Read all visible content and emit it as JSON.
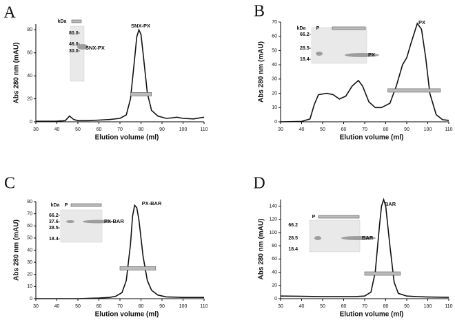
{
  "chart_data": [
    {
      "type": "line",
      "panel_label": "A",
      "xlabel": "Elution volume (ml)",
      "ylabel": "Abs 280 nm (mAU)",
      "xlim": [
        30,
        110
      ],
      "xticks": [
        30,
        40,
        50,
        60,
        70,
        80,
        90,
        100,
        110
      ],
      "ylim": [
        0,
        85
      ],
      "yticks": [
        0,
        20,
        40,
        60,
        80
      ],
      "color": "#111111",
      "annotation": "SNX-PX",
      "x": [
        30,
        35,
        40,
        44,
        46,
        48,
        50,
        55,
        60,
        65,
        70,
        73,
        75,
        77,
        78,
        79,
        80,
        81,
        83,
        85,
        88,
        92,
        95,
        97,
        100,
        105,
        110
      ],
      "values": [
        0.5,
        0.5,
        0.6,
        1,
        5,
        2,
        1,
        1,
        1.5,
        2,
        3,
        6,
        20,
        55,
        74,
        80,
        76,
        60,
        25,
        10,
        5,
        3,
        3.5,
        4,
        3,
        2.5,
        4
      ],
      "pool": {
        "x": [
          75,
          85
        ],
        "y": 24
      },
      "inset": {
        "header": "kDa",
        "markers": [
          "80.0-",
          "46.0-",
          "30.0-"
        ],
        "band_label": "SNX-PX"
      }
    },
    {
      "type": "line",
      "panel_label": "B",
      "xlabel": "Elution volume (ml)",
      "ylabel": "Abs 280 nm (mAU)",
      "xlim": [
        30,
        110
      ],
      "xticks": [
        30,
        40,
        50,
        60,
        70,
        80,
        90,
        100,
        110
      ],
      "ylim": [
        0,
        70
      ],
      "yticks": [
        0,
        10,
        20,
        30,
        40,
        50,
        60,
        70
      ],
      "color": "#111111",
      "annotation": "PX",
      "x": [
        30,
        40,
        44,
        46,
        48,
        52,
        55,
        58,
        61,
        64,
        67,
        69,
        72,
        75,
        78,
        82,
        85,
        88,
        90,
        92,
        95,
        97,
        99,
        101,
        104,
        107,
        110
      ],
      "values": [
        0,
        0.3,
        2,
        12,
        19,
        20,
        19,
        16,
        18,
        25,
        29,
        25,
        14,
        10,
        10,
        13,
        25,
        40,
        45,
        55,
        69,
        65,
        45,
        20,
        5,
        1.5,
        1
      ],
      "pool": {
        "x": [
          81,
          106
        ],
        "y": 22
      },
      "inset": {
        "header": "kDa",
        "lane": "P",
        "markers": [
          "66.2-",
          "28.5-",
          "18.4-"
        ],
        "band_label": "PX"
      }
    },
    {
      "type": "line",
      "panel_label": "C",
      "xlabel": "Elution volume (ml)",
      "ylabel": "Abs 280 nm (mAU)",
      "xlim": [
        30,
        110
      ],
      "xticks": [
        30,
        40,
        50,
        60,
        70,
        80,
        90,
        100,
        110
      ],
      "ylim": [
        0,
        80
      ],
      "yticks": [
        0,
        10,
        20,
        30,
        40,
        50,
        60,
        70,
        80
      ],
      "color": "#111111",
      "annotation": "PX-BAR",
      "x": [
        30,
        40,
        50,
        60,
        65,
        68,
        71,
        73,
        75,
        76,
        77,
        78,
        79,
        81,
        83,
        85,
        88,
        92,
        100,
        110
      ],
      "values": [
        0,
        0,
        0,
        0.5,
        1,
        2,
        5,
        15,
        45,
        68,
        77,
        75,
        65,
        35,
        15,
        7,
        3,
        1.5,
        1,
        1
      ],
      "pool": {
        "x": [
          70,
          87
        ],
        "y": 25
      },
      "inset": {
        "header": "kDa",
        "lane": "P",
        "markers": [
          "66.2-",
          "37.6-",
          "28.5-",
          "18.4-"
        ],
        "band_label": "PX-BAR"
      }
    },
    {
      "type": "line",
      "panel_label": "D",
      "xlabel": "Elution volume (ml)",
      "ylabel": "Abs 280 nm (mAU)",
      "xlim": [
        30,
        110
      ],
      "xticks": [
        30,
        40,
        50,
        60,
        70,
        80,
        90,
        100,
        110
      ],
      "ylim": [
        0,
        150
      ],
      "yticks": [
        0,
        20,
        40,
        60,
        80,
        100,
        120,
        140
      ],
      "color": "#111111",
      "annotation": "BAR",
      "x": [
        30,
        40,
        50,
        60,
        65,
        70,
        73,
        75,
        77,
        78,
        79,
        80,
        82,
        84,
        86,
        90,
        95,
        100,
        110
      ],
      "values": [
        4,
        3.5,
        3,
        3,
        3,
        4,
        10,
        40,
        110,
        140,
        150,
        140,
        80,
        25,
        8,
        4,
        3,
        2.5,
        2
      ],
      "pool": {
        "x": [
          70,
          87
        ],
        "y": 38
      },
      "inset": {
        "lane": "P",
        "markers": [
          "66.2",
          "28.5",
          "18.4"
        ],
        "band_label": "BAR"
      }
    }
  ]
}
